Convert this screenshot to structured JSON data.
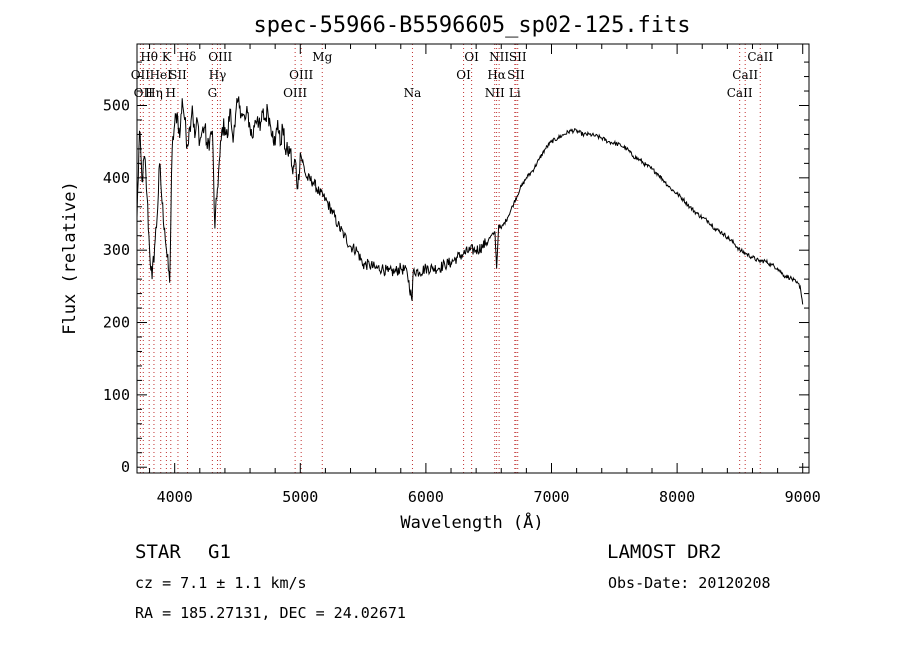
{
  "chart_data": {
    "type": "line",
    "title": "spec-55966-B5596605_sp02-125.fits",
    "xlabel": "Wavelength (Å)",
    "ylabel": "Flux (relative)",
    "xlim": [
      3700,
      9050
    ],
    "ylim": [
      -8,
      585
    ],
    "x_ticks": [
      4000,
      5000,
      6000,
      7000,
      8000,
      9000
    ],
    "y_ticks": [
      0,
      100,
      200,
      300,
      400,
      500
    ],
    "grid": false,
    "legend": "none",
    "line_color": "#000000",
    "marker_color": "#c03030",
    "series": [
      {
        "x": [
          3700,
          3720,
          3740,
          3760,
          3780,
          3800,
          3820,
          3840,
          3860,
          3880,
          3900,
          3920,
          3940,
          3960,
          3980,
          4000,
          4020,
          4040,
          4060,
          4080,
          4100,
          4120,
          4140,
          4160,
          4180,
          4200,
          4220,
          4240,
          4260,
          4280,
          4300,
          4320,
          4340,
          4360,
          4380,
          4400,
          4420,
          4440,
          4460,
          4480,
          4500,
          4520,
          4540,
          4560,
          4580,
          4600,
          4620,
          4640,
          4660,
          4680,
          4700,
          4720,
          4740,
          4760,
          4780,
          4800,
          4820,
          4840,
          4860,
          4880,
          4900,
          4920,
          4940,
          4960,
          4980,
          5000,
          5050,
          5100,
          5150,
          5200,
          5250,
          5300,
          5350,
          5400,
          5450,
          5500,
          5550,
          5600,
          5650,
          5700,
          5750,
          5800,
          5850,
          5890,
          5900,
          5950,
          6000,
          6050,
          6100,
          6150,
          6200,
          6250,
          6300,
          6350,
          6400,
          6450,
          6500,
          6550,
          6563,
          6580,
          6600,
          6650,
          6700,
          6750,
          6800,
          6850,
          6900,
          6950,
          7000,
          7050,
          7100,
          7150,
          7200,
          7250,
          7300,
          7350,
          7400,
          7450,
          7500,
          7550,
          7600,
          7650,
          7700,
          7750,
          7800,
          7850,
          7900,
          7950,
          8000,
          8050,
          8100,
          8150,
          8200,
          8250,
          8300,
          8350,
          8400,
          8450,
          8500,
          8550,
          8600,
          8650,
          8700,
          8750,
          8800,
          8850,
          8900,
          8950,
          8980,
          9000
        ],
        "y": [
          345,
          465,
          395,
          430,
          375,
          300,
          260,
          305,
          345,
          420,
          365,
          330,
          290,
          255,
          440,
          475,
          490,
          455,
          510,
          480,
          445,
          470,
          500,
          455,
          480,
          450,
          465,
          470,
          440,
          455,
          465,
          330,
          385,
          430,
          470,
          470,
          455,
          495,
          460,
          470,
          505,
          500,
          485,
          480,
          490,
          470,
          455,
          480,
          485,
          465,
          490,
          480,
          495,
          475,
          465,
          445,
          480,
          445,
          470,
          440,
          435,
          440,
          405,
          425,
          385,
          435,
          400,
          395,
          380,
          370,
          355,
          335,
          320,
          305,
          300,
          280,
          280,
          275,
          275,
          270,
          270,
          275,
          270,
          230,
          272,
          270,
          275,
          275,
          275,
          280,
          283,
          290,
          295,
          300,
          300,
          305,
          315,
          325,
          275,
          335,
          330,
          345,
          365,
          385,
          400,
          410,
          425,
          440,
          450,
          455,
          460,
          465,
          465,
          460,
          460,
          458,
          455,
          450,
          448,
          445,
          440,
          430,
          425,
          418,
          412,
          405,
          395,
          385,
          378,
          370,
          360,
          352,
          345,
          340,
          330,
          325,
          318,
          310,
          300,
          295,
          290,
          285,
          285,
          280,
          275,
          265,
          262,
          255,
          250,
          225
        ]
      }
    ],
    "line_markers": [
      {
        "x": 3727,
        "label": "OII",
        "row": 1
      },
      {
        "x": 3750,
        "label": "OII",
        "row": 2
      },
      {
        "x": 3797,
        "label": "Hθ",
        "row": 0
      },
      {
        "x": 3835,
        "label": "Hη",
        "row": 2
      },
      {
        "x": 3889,
        "label": "HeI",
        "row": 1
      },
      {
        "x": 3934,
        "label": "K",
        "row": 0
      },
      {
        "x": 3969,
        "label": "H",
        "row": 2
      },
      {
        "x": 4026,
        "label": "SII",
        "row": 1
      },
      {
        "x": 4102,
        "label": "Hδ",
        "row": 0
      },
      {
        "x": 4300,
        "label": "G",
        "row": 2
      },
      {
        "x": 4341,
        "label": "Hγ",
        "row": 1
      },
      {
        "x": 4363,
        "label": "OIII",
        "row": 0
      },
      {
        "x": 4959,
        "label": "OIII",
        "row": 2
      },
      {
        "x": 5007,
        "label": "OIII",
        "row": 1
      },
      {
        "x": 5175,
        "label": "Mg",
        "row": 0
      },
      {
        "x": 5893,
        "label": "Na",
        "row": 2
      },
      {
        "x": 6300,
        "label": "OI",
        "row": 1
      },
      {
        "x": 6364,
        "label": "OI",
        "row": 0
      },
      {
        "x": 6548,
        "label": "NII",
        "row": 2
      },
      {
        "x": 6563,
        "label": "Hα",
        "row": 1
      },
      {
        "x": 6583,
        "label": "NII",
        "row": 0
      },
      {
        "x": 6708,
        "label": "Li",
        "row": 2
      },
      {
        "x": 6717,
        "label": "SII",
        "row": 1
      },
      {
        "x": 6731,
        "label": "SII",
        "row": 0
      },
      {
        "x": 8498,
        "label": "CaII",
        "row": 2
      },
      {
        "x": 8542,
        "label": "CaII",
        "row": 1
      },
      {
        "x": 8662,
        "label": "CaII",
        "row": 0
      }
    ]
  },
  "info": {
    "object_class": "STAR",
    "subclass": "G1",
    "survey": "LAMOST DR2",
    "cz": "cz = 7.1 ± 1.1 km/s",
    "obs_date": "Obs-Date: 20120208",
    "coords": "RA = 185.27131, DEC =  24.02671"
  }
}
